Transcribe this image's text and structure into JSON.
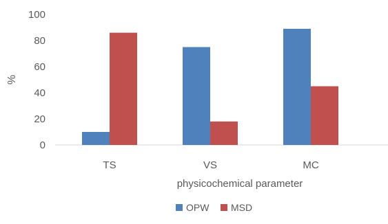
{
  "chart_data": {
    "type": "bar",
    "title": "",
    "xlabel": "physicochemical parameter",
    "ylabel": "%",
    "categories": [
      "TS",
      "VS",
      "MC"
    ],
    "series": [
      {
        "name": "OPW",
        "values": [
          10,
          75,
          89
        ]
      },
      {
        "name": "MSD",
        "values": [
          86,
          18,
          45
        ]
      }
    ],
    "ylim": [
      0,
      100
    ],
    "yticks": [
      0,
      20,
      40,
      60,
      80,
      100
    ],
    "grid": false,
    "legend_position": "bottom",
    "colors": {
      "OPW": "#4f81bd",
      "MSD": "#c0504d",
      "axis": "#d9d9d9",
      "text": "#595959"
    }
  }
}
